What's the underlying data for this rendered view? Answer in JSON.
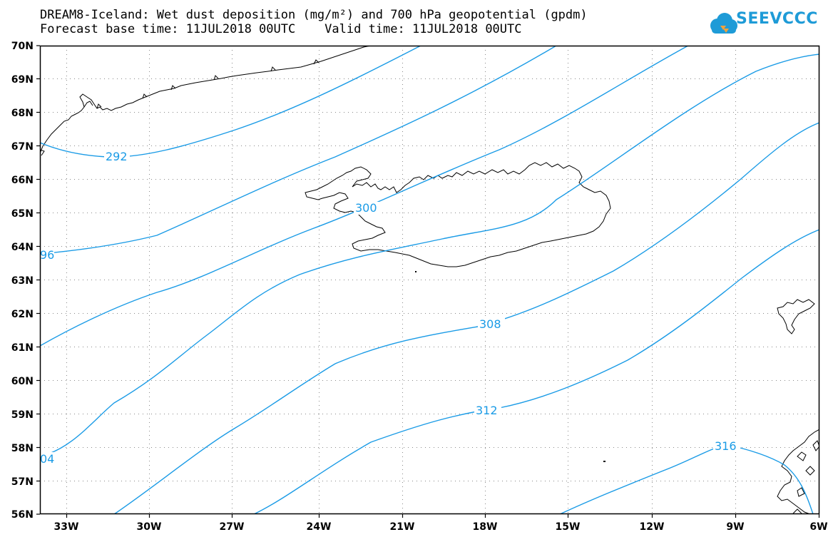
{
  "title_line1": "DREAM8-Iceland: Wet dust deposition (mg/m²) and 700 hPa geopotential (gpdm)",
  "title_line2": "Forecast base time: 11JUL2018 00UTC    Valid time: 11JUL2018 00UTC",
  "logo_text": "SEEVCCC",
  "colors": {
    "contour": "#1a9be6",
    "coast": "#000000",
    "grid": "#888888",
    "logo": "#1e9bd7"
  },
  "lat_labels": [
    "70N",
    "69N",
    "68N",
    "67N",
    "66N",
    "65N",
    "64N",
    "63N",
    "62N",
    "61N",
    "60N",
    "59N",
    "58N",
    "57N",
    "56N"
  ],
  "lon_labels": [
    "33W",
    "30W",
    "27W",
    "24W",
    "21W",
    "18W",
    "15W",
    "12W",
    "9W",
    "6W"
  ],
  "contour_labels": [
    "292",
    "96",
    "300",
    "308",
    "312",
    "04",
    "316"
  ]
}
